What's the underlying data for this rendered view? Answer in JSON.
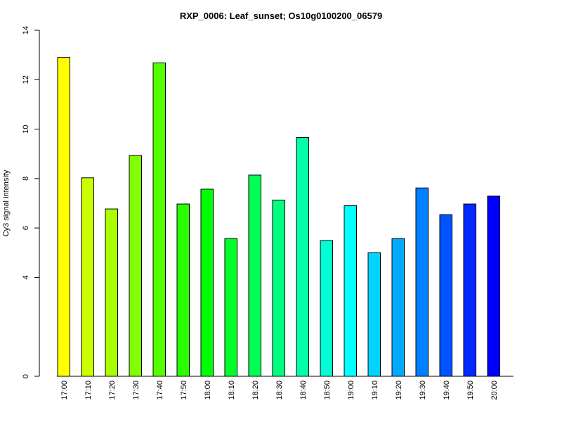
{
  "chart_data": {
    "type": "bar",
    "title": "RXP_0006: Leaf_sunset; Os10g0100200_06579",
    "xlabel": "",
    "ylabel": "Cy3 signal intensity",
    "categories": [
      "17:00",
      "17:10",
      "17:20",
      "17:30",
      "17:40",
      "17:50",
      "18:00",
      "18:10",
      "18:20",
      "18:30",
      "18:40",
      "18:50",
      "19:00",
      "19:10",
      "19:20",
      "19:30",
      "19:40",
      "19:50",
      "20:00"
    ],
    "values": [
      12.9,
      8.03,
      6.77,
      8.93,
      12.68,
      6.97,
      7.57,
      5.57,
      8.14,
      7.13,
      9.66,
      5.49,
      6.9,
      5.0,
      5.57,
      7.62,
      6.54,
      6.97,
      7.29
    ],
    "colors": [
      "#FFFF00",
      "#CCFF00",
      "#A9FF00",
      "#7FFF00",
      "#55FF00",
      "#2AFF00",
      "#00FF00",
      "#00FF2A",
      "#00FF55",
      "#00FF7F",
      "#00FFAA",
      "#00FFD4",
      "#00FFFF",
      "#00D4FF",
      "#00AAFF",
      "#007FFF",
      "#0055FF",
      "#002AFF",
      "#0000FF"
    ],
    "y_ticks": [
      0,
      4,
      6,
      8,
      10,
      12,
      14
    ],
    "ylim": [
      0,
      14
    ],
    "grid": false,
    "legend": "none"
  }
}
